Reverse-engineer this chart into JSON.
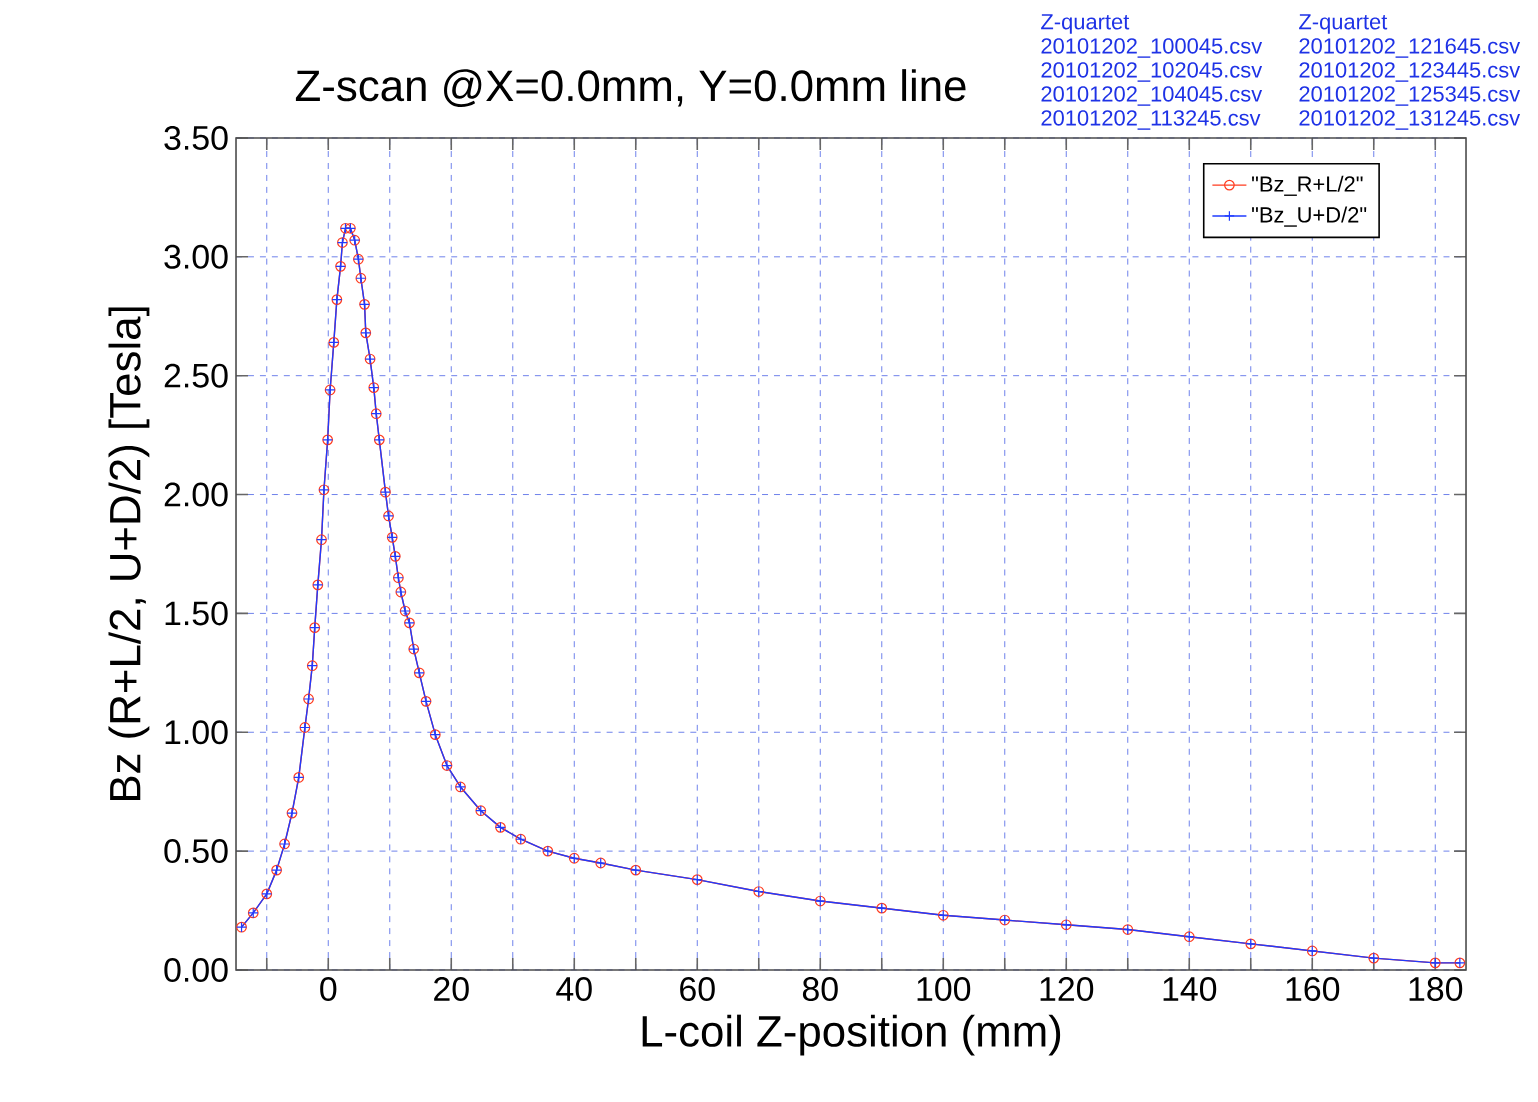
{
  "chart_data": {
    "type": "line",
    "title": "Z-scan @X=0.0mm, Y=0.0mm line",
    "xlabel": "L-coil Z-position   (mm)",
    "ylabel": "Bz (R+L/2, U+D/2)   [Tesla]",
    "annotations": [
      "Z-quartet",
      "20101202_100045.csv",
      "20101202_102045.csv",
      "20101202_104045.csv",
      "20101202_113245.csv",
      "Z-quartet",
      "20101202_121645.csv",
      "20101202_123445.csv",
      "20101202_125345.csv",
      "20101202_131245.csv"
    ],
    "x": [
      -14.1,
      -12.2,
      -10,
      -8.4,
      -7.1,
      -5.9,
      -4.8,
      -3.8,
      -3.2,
      -2.6,
      -2.2,
      -1.7,
      -1.1,
      -0.7,
      -0.1,
      0.3,
      0.9,
      1.4,
      2.0,
      2.3,
      2.8,
      3.6,
      4.3,
      4.9,
      5.3,
      5.9,
      6.1,
      6.8,
      7.4,
      7.8,
      8.3,
      9.3,
      9.8,
      10.4,
      10.9,
      11.4,
      11.8,
      12.5,
      13.2,
      13.9,
      14.8,
      15.9,
      17.4,
      19.3,
      21.5,
      24.8,
      28,
      31.3,
      35.7,
      40,
      44.3,
      50,
      60,
      70,
      80,
      90,
      100,
      110,
      120,
      130,
      140,
      150,
      160,
      170,
      180,
      184
    ],
    "series": [
      {
        "name": "\"Bz_R+L/2\"",
        "color": "#ff3b1f",
        "marker": "circle",
        "values": [
          0.18,
          0.24,
          0.32,
          0.42,
          0.53,
          0.66,
          0.81,
          1.02,
          1.14,
          1.28,
          1.44,
          1.62,
          1.81,
          2.02,
          2.23,
          2.44,
          2.64,
          2.82,
          2.96,
          3.06,
          3.12,
          3.12,
          3.07,
          2.99,
          2.91,
          2.8,
          2.68,
          2.57,
          2.45,
          2.34,
          2.23,
          2.01,
          1.91,
          1.82,
          1.74,
          1.65,
          1.59,
          1.51,
          1.46,
          1.35,
          1.25,
          1.13,
          0.99,
          0.86,
          0.77,
          0.67,
          0.6,
          0.55,
          0.5,
          0.47,
          0.45,
          0.42,
          0.38,
          0.33,
          0.29,
          0.26,
          0.23,
          0.21,
          0.19,
          0.17,
          0.14,
          0.11,
          0.08,
          0.05,
          0.03,
          0.03
        ]
      },
      {
        "name": "\"Bz_U+D/2\"",
        "color": "#1f3bff",
        "marker": "cross",
        "values": [
          0.18,
          0.24,
          0.32,
          0.42,
          0.53,
          0.66,
          0.81,
          1.02,
          1.14,
          1.28,
          1.44,
          1.62,
          1.81,
          2.02,
          2.23,
          2.44,
          2.64,
          2.82,
          2.96,
          3.06,
          3.12,
          3.12,
          3.07,
          2.99,
          2.91,
          2.8,
          2.68,
          2.57,
          2.45,
          2.34,
          2.23,
          2.01,
          1.91,
          1.82,
          1.74,
          1.65,
          1.59,
          1.51,
          1.46,
          1.35,
          1.25,
          1.13,
          0.99,
          0.86,
          0.77,
          0.67,
          0.6,
          0.55,
          0.5,
          0.47,
          0.45,
          0.42,
          0.38,
          0.33,
          0.29,
          0.26,
          0.23,
          0.21,
          0.19,
          0.17,
          0.14,
          0.11,
          0.08,
          0.05,
          0.03,
          0.03
        ]
      }
    ],
    "xlim": [
      -15,
      185
    ],
    "xticks": [
      {
        "value": -10,
        "label": null
      },
      0,
      {
        "value": 10,
        "label": null
      },
      20,
      {
        "value": 30,
        "label": null
      },
      40,
      {
        "value": 50,
        "label": null
      },
      60,
      {
        "value": 70,
        "label": null
      },
      80,
      {
        "value": 90,
        "label": null
      },
      100,
      {
        "value": 110,
        "label": null
      },
      120,
      {
        "value": 130,
        "label": null
      },
      140,
      {
        "value": 150,
        "label": null
      },
      160,
      {
        "value": 170,
        "label": null
      },
      180
    ],
    "ylim": [
      0,
      3.5
    ],
    "yticks": [
      {
        "value": 0,
        "label": "0.00"
      },
      {
        "value": 0.5,
        "label": "0.50"
      },
      {
        "value": 1,
        "label": "1.00"
      },
      {
        "value": 1.5,
        "label": "1.50"
      },
      {
        "value": 2,
        "label": "2.00"
      },
      {
        "value": 2.5,
        "label": "2.50"
      },
      {
        "value": 3,
        "label": "3.00"
      },
      {
        "value": 3.5,
        "label": "3.50"
      }
    ],
    "grid": true,
    "legend": "top right",
    "line_style": "solid"
  }
}
